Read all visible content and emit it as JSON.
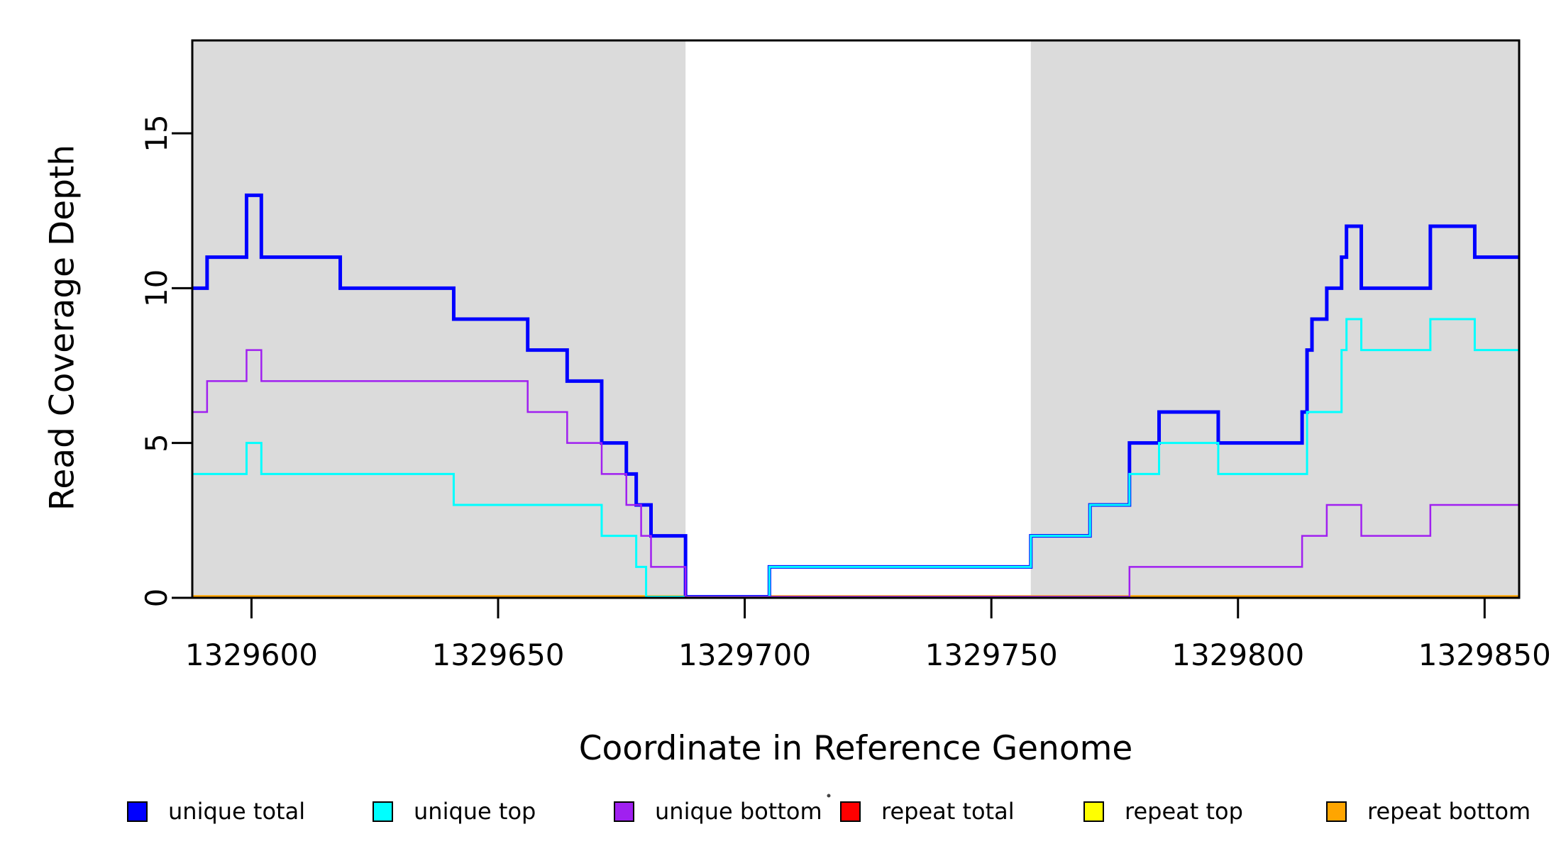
{
  "chart_data": {
    "type": "line",
    "subtype": "step",
    "title": "",
    "xlabel": "Coordinate in Reference Genome",
    "ylabel": "Read Coverage Depth",
    "xlim": [
      1329588,
      1329857
    ],
    "ylim": [
      0,
      18
    ],
    "x_ticks": [
      1329600,
      1329650,
      1329700,
      1329750,
      1329800,
      1329850
    ],
    "y_ticks": [
      0,
      5,
      10,
      15
    ],
    "grid": false,
    "plot_background": "#FFFFFF",
    "shaded_regions": [
      {
        "name": "left-gray-band",
        "x0": 1329588,
        "x1": 1329688,
        "color": "#DBDBDB"
      },
      {
        "name": "right-gray-band",
        "x0": 1329758,
        "x1": 1329857,
        "color": "#DBDBDB"
      }
    ],
    "series": [
      {
        "name": "repeat top",
        "color": "#FFFF00",
        "width": 3,
        "steps": [
          [
            1329588,
            0
          ]
        ]
      },
      {
        "name": "repeat total",
        "color": "#FF0000",
        "width": 3,
        "steps": [
          [
            1329588,
            0
          ]
        ]
      },
      {
        "name": "repeat bottom",
        "color": "#FFA500",
        "width": 4.5,
        "steps": [
          [
            1329588,
            0
          ]
        ]
      },
      {
        "name": "unique total",
        "color": "#0000FF",
        "width": 5,
        "steps": [
          [
            1329588,
            10
          ],
          [
            1329591,
            11
          ],
          [
            1329599,
            13
          ],
          [
            1329602,
            11
          ],
          [
            1329618,
            10
          ],
          [
            1329641,
            9
          ],
          [
            1329656,
            8
          ],
          [
            1329664,
            7
          ],
          [
            1329671,
            5
          ],
          [
            1329676,
            4
          ],
          [
            1329678,
            3
          ],
          [
            1329681,
            2
          ],
          [
            1329688,
            0
          ],
          [
            1329705,
            1
          ],
          [
            1329758,
            2
          ],
          [
            1329770,
            3
          ],
          [
            1329778,
            5
          ],
          [
            1329784,
            6
          ],
          [
            1329796,
            5
          ],
          [
            1329813,
            6
          ],
          [
            1329814,
            8
          ],
          [
            1329815,
            9
          ],
          [
            1329818,
            10
          ],
          [
            1329821,
            11
          ],
          [
            1329822,
            12
          ],
          [
            1329825,
            10
          ],
          [
            1329839,
            12
          ],
          [
            1329848,
            11
          ]
        ]
      },
      {
        "name": "unique top",
        "color": "#00FFFF",
        "width": 3,
        "steps": [
          [
            1329588,
            4
          ],
          [
            1329599,
            5
          ],
          [
            1329602,
            4
          ],
          [
            1329641,
            3
          ],
          [
            1329671,
            2
          ],
          [
            1329678,
            1
          ],
          [
            1329680,
            0
          ],
          [
            1329705,
            1
          ],
          [
            1329758,
            2
          ],
          [
            1329770,
            3
          ],
          [
            1329778,
            4
          ],
          [
            1329784,
            5
          ],
          [
            1329796,
            4
          ],
          [
            1329814,
            6
          ],
          [
            1329821,
            8
          ],
          [
            1329822,
            9
          ],
          [
            1329825,
            8
          ],
          [
            1329839,
            9
          ],
          [
            1329848,
            8
          ]
        ]
      },
      {
        "name": "unique bottom",
        "color": "#A020F0",
        "width": 2.5,
        "steps": [
          [
            1329588,
            6
          ],
          [
            1329591,
            7
          ],
          [
            1329599,
            8
          ],
          [
            1329602,
            7
          ],
          [
            1329656,
            6
          ],
          [
            1329664,
            5
          ],
          [
            1329671,
            4
          ],
          [
            1329676,
            3
          ],
          [
            1329679,
            2
          ],
          [
            1329681,
            1
          ],
          [
            1329688,
            0
          ],
          [
            1329778,
            1
          ],
          [
            1329813,
            2
          ],
          [
            1329818,
            3
          ],
          [
            1329825,
            2
          ],
          [
            1329839,
            3
          ]
        ]
      }
    ],
    "legend_position": "bottom"
  },
  "legend": {
    "items": [
      {
        "label": "unique total",
        "color": "#0000FF"
      },
      {
        "label": "unique top",
        "color": "#00FFFF"
      },
      {
        "label": "unique bottom",
        "color": "#A020F0"
      },
      {
        "label": "repeat total",
        "color": "#FF0000"
      },
      {
        "label": "repeat top",
        "color": "#FFFF00"
      },
      {
        "label": "repeat bottom",
        "color": "#FFA500"
      }
    ]
  },
  "artifacts": {
    "stray_dot_color": "#444444"
  }
}
